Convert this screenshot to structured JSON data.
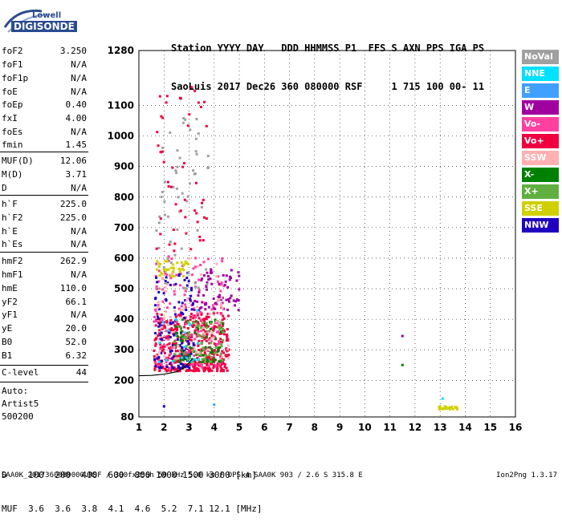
{
  "logo": {
    "top": "Lowell",
    "bottom": "DIGISONDE"
  },
  "header": {
    "line1": "Station YYYY DAY   DDD HHMMSS P1  FFS S AXN PPS IGA PS",
    "line2": "SaoLuis 2017 Dec26 360 080000 RSF     1 715 100 00- 11"
  },
  "params": [
    {
      "name": "foF2",
      "value": "3.250"
    },
    {
      "name": "foF1",
      "value": "N/A"
    },
    {
      "name": "foF1p",
      "value": "N/A"
    },
    {
      "name": "foE",
      "value": "N/A"
    },
    {
      "name": "foEp",
      "value": "0.40"
    },
    {
      "name": "fxI",
      "value": "4.00"
    },
    {
      "name": "foEs",
      "value": "N/A"
    },
    {
      "name": "fmin",
      "value": "1.45"
    },
    {
      "name": "MUF(D)",
      "value": "12.06"
    },
    {
      "name": "M(D)",
      "value": "3.71"
    },
    {
      "name": "D",
      "value": "N/A"
    },
    {
      "name": "h`F",
      "value": "225.0"
    },
    {
      "name": "h`F2",
      "value": "225.0"
    },
    {
      "name": "h`E",
      "value": "N/A"
    },
    {
      "name": "h`Es",
      "value": "N/A"
    },
    {
      "name": "hmF2",
      "value": "262.9"
    },
    {
      "name": "hmF1",
      "value": "N/A"
    },
    {
      "name": "hmE",
      "value": "110.0"
    },
    {
      "name": "yF2",
      "value": "66.1"
    },
    {
      "name": "yF1",
      "value": "N/A"
    },
    {
      "name": "yE",
      "value": "20.0"
    },
    {
      "name": "B0",
      "value": "52.0"
    },
    {
      "name": "B1",
      "value": "6.32"
    }
  ],
  "clevel": {
    "name": "C-level",
    "value": "44"
  },
  "auto": {
    "line1": "Auto:",
    "line2": "Artist5",
    "line3": "500200"
  },
  "legend": [
    {
      "label": "NoVal",
      "color": "#a0a0a0"
    },
    {
      "label": "NNE",
      "color": "#00e0ff"
    },
    {
      "label": "E",
      "color": "#40a0ff"
    },
    {
      "label": "W",
      "color": "#a000a0"
    },
    {
      "label": "Vo-",
      "color": "#ff40a0"
    },
    {
      "label": "Vo+",
      "color": "#f00040"
    },
    {
      "label": "SSW",
      "color": "#ffb0b0"
    },
    {
      "label": "X-",
      "color": "#008000"
    },
    {
      "label": "X+",
      "color": "#60b040"
    },
    {
      "label": "SSE",
      "color": "#d0d000"
    },
    {
      "label": "NNW",
      "color": "#2000c0"
    }
  ],
  "bottom": {
    "d_line": "D    100  200  400  600  800 1000 1500 3000 [km]",
    "muf_line": "MUF  3.6  3.6  3.8  4.1  4.6  5.2  7.1 12.1 [MHz]"
  },
  "footer": "SAA0K_2017360080000.RSF / 300fx256h 50 kHz 5.0 km / DPS-4 SAA0K 903 / 2.6 S 315.8 E",
  "version": "Ion2Png 1.3.17",
  "chart_data": {
    "type": "scatter",
    "xlim": [
      1,
      16
    ],
    "ylim": [
      80,
      1280
    ],
    "x_ticks": [
      1,
      2,
      3,
      4,
      5,
      6,
      7,
      8,
      9,
      10,
      11,
      12,
      13,
      14,
      15,
      16
    ],
    "y_ticks": [
      80,
      200,
      300,
      400,
      500,
      600,
      700,
      800,
      900,
      1000,
      1100,
      1280
    ],
    "xlabel": "",
    "ylabel": "",
    "grid": true,
    "trace": {
      "x": [
        1.0,
        1.5,
        2.0,
        2.5,
        2.8,
        3.0,
        3.15
      ],
      "y": [
        215,
        216,
        220,
        228,
        242,
        258,
        272
      ]
    },
    "clusters": [
      {
        "color": "#f00040",
        "x": [
          1.6,
          4.6
        ],
        "y": [
          230,
          420
        ],
        "n": 420
      },
      {
        "color": "#ff40a0",
        "x": [
          1.6,
          4.4
        ],
        "y": [
          240,
          620
        ],
        "n": 160
      },
      {
        "color": "#2000c0",
        "x": [
          1.6,
          3.2
        ],
        "y": [
          240,
          560
        ],
        "n": 120
      },
      {
        "color": "#a000a0",
        "x": [
          3.2,
          5.0
        ],
        "y": [
          430,
          580
        ],
        "n": 70
      },
      {
        "color": "#008000",
        "x": [
          2.4,
          4.4
        ],
        "y": [
          260,
          400
        ],
        "n": 70
      },
      {
        "color": "#60b040",
        "x": [
          2.4,
          4.4
        ],
        "y": [
          260,
          400
        ],
        "n": 70
      },
      {
        "color": "#d0d000",
        "x": [
          1.7,
          3.0
        ],
        "y": [
          540,
          600
        ],
        "n": 40
      },
      {
        "color": "#ffb0b0",
        "x": [
          1.7,
          4.6
        ],
        "y": [
          260,
          600
        ],
        "n": 60
      },
      {
        "color": "#a0a0a0",
        "x": [
          1.7,
          3.8
        ],
        "y": [
          500,
          1060
        ],
        "n": 60
      },
      {
        "color": "#f00040",
        "x": [
          1.7,
          3.8
        ],
        "y": [
          620,
          1160
        ],
        "n": 50
      },
      {
        "color": "#00e0ff",
        "x": [
          1.7,
          3.4
        ],
        "y": [
          260,
          440
        ],
        "n": 20
      },
      {
        "color": "#d0d000",
        "x": [
          12.9,
          13.7
        ],
        "y": [
          105,
          115
        ],
        "n": 25
      }
    ],
    "points": [
      {
        "x": 11.5,
        "y": 345,
        "color": "#a000a0"
      },
      {
        "x": 11.5,
        "y": 250,
        "color": "#008000"
      },
      {
        "x": 13.1,
        "y": 140,
        "color": "#00e0ff"
      },
      {
        "x": 4.0,
        "y": 120,
        "color": "#40a0ff"
      },
      {
        "x": 2.0,
        "y": 115,
        "color": "#2000c0"
      }
    ]
  }
}
